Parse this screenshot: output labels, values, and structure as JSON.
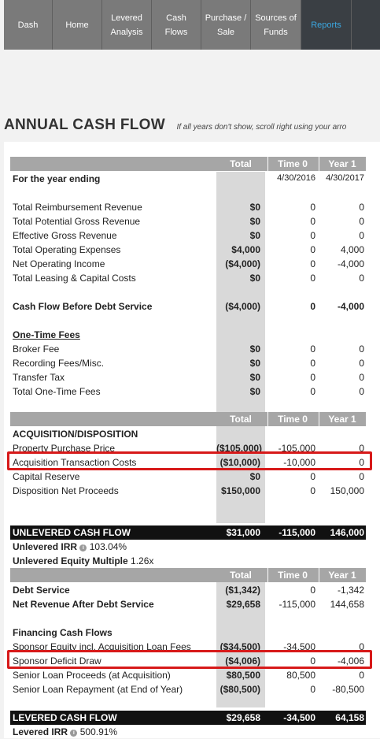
{
  "nav": [
    {
      "label": "Dash"
    },
    {
      "label": "Home"
    },
    {
      "label": "Levered Analysis"
    },
    {
      "label": "Cash Flows"
    },
    {
      "label": "Purchase / Sale"
    },
    {
      "label": "Sources of Funds"
    },
    {
      "label": "Reports"
    }
  ],
  "page": {
    "title": "ANNUAL CASH FLOW",
    "hint": "If all years don't show, scroll right using your arro"
  },
  "columns": {
    "total": "Total",
    "time0": "Time 0",
    "year1": "Year 1"
  },
  "period_row": {
    "label": "For the year ending",
    "time0": "4/30/2016",
    "year1": "4/30/2017"
  },
  "revenue_rows": [
    {
      "label": "Total Reimbursement Revenue",
      "total": "$0",
      "time0": "0",
      "year1": "0"
    },
    {
      "label": "Total Potential Gross Revenue",
      "total": "$0",
      "time0": "0",
      "year1": "0"
    },
    {
      "label": "Effective Gross Revenue",
      "total": "$0",
      "time0": "0",
      "year1": "0"
    },
    {
      "label": "Total Operating Expenses",
      "total": "$4,000",
      "time0": "0",
      "year1": "4,000"
    },
    {
      "label": "Net Operating Income",
      "total": "($4,000)",
      "time0": "0",
      "year1": "-4,000"
    },
    {
      "label": "Total Leasing & Capital Costs",
      "total": "$0",
      "time0": "0",
      "year1": "0"
    }
  ],
  "cfbds": {
    "label": "Cash Flow Before Debt Service",
    "total": "($4,000)",
    "time0": "0",
    "year1": "-4,000"
  },
  "fees": {
    "heading": "One-Time Fees",
    "rows": [
      {
        "label": "Broker Fee",
        "total": "$0",
        "time0": "0",
        "year1": "0"
      },
      {
        "label": "Recording Fees/Misc.",
        "total": "$0",
        "time0": "0",
        "year1": "0"
      },
      {
        "label": "Transfer Tax",
        "total": "$0",
        "time0": "0",
        "year1": "0"
      },
      {
        "label": "Total One-Time Fees",
        "total": "$0",
        "time0": "0",
        "year1": "0"
      }
    ]
  },
  "acquisition": {
    "heading": "ACQUISITION/DISPOSITION",
    "rows": [
      {
        "label": "Property Purchase Price",
        "total": "($105,000)",
        "time0": "-105,000",
        "year1": "0"
      },
      {
        "label": "Acquisition Transaction Costs",
        "total": "($10,000)",
        "time0": "-10,000",
        "year1": "0"
      },
      {
        "label": "Capital Reserve",
        "total": "$0",
        "time0": "0",
        "year1": "0"
      },
      {
        "label": "Disposition Net Proceeds",
        "total": "$150,000",
        "time0": "0",
        "year1": "150,000"
      }
    ]
  },
  "unlevered": {
    "label": "UNLEVERED CASH FLOW",
    "total": "$31,000",
    "time0": "-115,000",
    "year1": "146,000",
    "irr_label": "Unlevered IRR",
    "irr_value": "103.04%",
    "multiple_label": "Unlevered Equity Multiple",
    "multiple_value": "1.26x"
  },
  "debt": {
    "rows": [
      {
        "label": "Debt Service",
        "total": "($1,342)",
        "time0": "0",
        "year1": "-1,342"
      },
      {
        "label": "Net Revenue After Debt Service",
        "total": "$29,658",
        "time0": "-115,000",
        "year1": "144,658"
      }
    ]
  },
  "financing": {
    "heading": "Financing Cash Flows",
    "rows": [
      {
        "label": "Sponsor Equity incl. Acquisition Loan Fees",
        "total": "($34,500)",
        "time0": "-34,500",
        "year1": "0"
      },
      {
        "label": "Sponsor Deficit Draw",
        "total": "($4,006)",
        "time0": "0",
        "year1": "-4,006"
      },
      {
        "label": "Senior Loan Proceeds (at Acquisition)",
        "total": "$80,500",
        "time0": "80,500",
        "year1": "0"
      },
      {
        "label": "Senior Loan Repayment (at End of Year)",
        "total": "($80,500)",
        "time0": "0",
        "year1": "-80,500"
      }
    ]
  },
  "levered": {
    "label": "LEVERED CASH FLOW",
    "total": "$29,658",
    "time0": "-34,500",
    "year1": "64,158",
    "irr_label": "Levered IRR",
    "irr_value": "500.91%"
  },
  "info_icon_glyph": "i"
}
